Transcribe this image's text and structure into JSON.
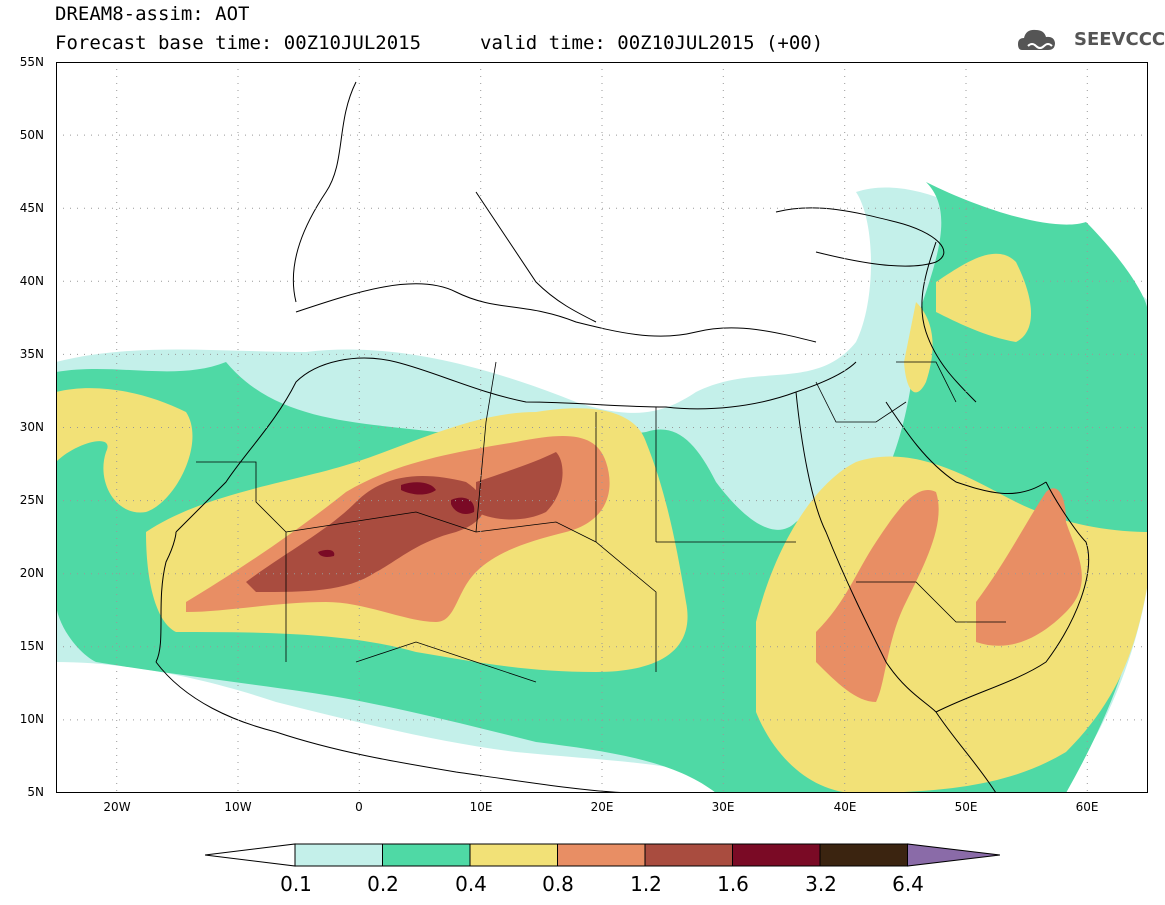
{
  "header": {
    "title": "DREAM8-assim: AOT",
    "base_time": "Forecast base time: 00Z10JUL2015",
    "valid_time": "valid time: 00Z10JUL2015 (+00)",
    "logo_text": "SEEVCCC"
  },
  "map": {
    "y_axis_labels": [
      "55N",
      "50N",
      "45N",
      "40N",
      "35N",
      "30N",
      "25N",
      "20N",
      "15N",
      "10N",
      "5N"
    ],
    "x_axis_labels": [
      "20W",
      "10W",
      "0",
      "10E",
      "20E",
      "30E",
      "40E",
      "50E",
      "60E"
    ],
    "lon_range": [
      -25,
      65
    ],
    "lat_range": [
      5,
      55
    ]
  },
  "legend": {
    "labels": [
      "0.1",
      "0.2",
      "0.4",
      "0.8",
      "1.2",
      "1.6",
      "3.2",
      "6.4"
    ],
    "colors": [
      "#ffffff",
      "#c4f0ea",
      "#4fd9a5",
      "#f2e177",
      "#e88e64",
      "#a94c3f",
      "#7a0a25",
      "#3b2410",
      "#8a6ba8"
    ]
  }
}
